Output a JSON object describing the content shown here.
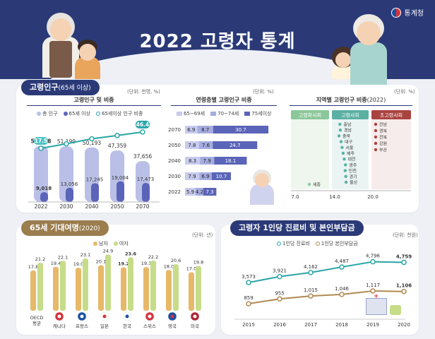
{
  "header": {
    "title": "2022 고령자 통계",
    "logo_text": "통계청"
  },
  "panel1": {
    "title": "고령인구",
    "title_small": "(65세 이상)",
    "unit": "(단위: 천명, %)",
    "unit2": "(단위: %)",
    "unit3": "(단위: %)",
    "sub1": "고령인구 및 비중",
    "sub2": "연령층별 고령인구 비중",
    "sub3_pre": "지역별 고령인구 비중",
    "sub3_year": "(2022)",
    "legend1": [
      "총 인구",
      "65세 이상",
      "65세이상 인구 비중"
    ],
    "legend2": [
      "65~69세",
      "70~74세",
      "75세이상"
    ]
  },
  "panel2": {
    "title": "65세 기대여명",
    "title_small": "(2020)",
    "unit": "(단위: 년)",
    "legend": [
      "남자",
      "여자"
    ]
  },
  "panel3": {
    "title": "고령자 1인당 진료비 및 본인부담금",
    "unit": "(단위: 천원)",
    "legend": [
      "1인당 진료비",
      "1인당 본인부담금"
    ]
  },
  "colors": {
    "navy": "#2b3a77",
    "lavender": "#b9bfe6",
    "blue": "#5a64b8",
    "teal": "#2aa5a8",
    "tan": "#e7b868",
    "green": "#c6dc88",
    "olive": "#b08a52"
  },
  "chart_data": [
    {
      "type": "bar",
      "title": "고령인구 및 비중",
      "categories": [
        "2022",
        "2030",
        "2040",
        "2050",
        "2070"
      ],
      "series": [
        {
          "name": "총 인구",
          "values": [
            51628,
            51199,
            50193,
            47359,
            37656
          ],
          "labels": [
            "51,628",
            "51,199",
            "50,193",
            "47,359",
            "37,656"
          ]
        },
        {
          "name": "65세 이상",
          "values": [
            9018,
            13056,
            17245,
            19004,
            17473
          ],
          "labels": [
            "9,018",
            "13,056",
            "17,245",
            "19,004",
            "17,473"
          ]
        },
        {
          "name": "65세이상 인구 비중",
          "type": "line",
          "values": [
            17.5,
            25.5,
            34.4,
            40.1,
            46.4
          ],
          "labels": [
            "17.5",
            "",
            "",
            "",
            "46.4"
          ]
        }
      ]
    },
    {
      "type": "bar",
      "title": "연령층별 고령인구 비중",
      "orientation": "horizontal-stacked",
      "categories": [
        "2070",
        "2050",
        "2040",
        "2030",
        "2022"
      ],
      "series": [
        {
          "name": "65~69세",
          "values": [
            6.9,
            7.8,
            8.3,
            7.9,
            5.9
          ]
        },
        {
          "name": "70~74세",
          "values": [
            8.7,
            7.6,
            7.9,
            6.9,
            4.2
          ]
        },
        {
          "name": "75세이상",
          "values": [
            30.7,
            24.7,
            18.1,
            10.7,
            7.3
          ]
        }
      ]
    },
    {
      "type": "scatter",
      "title": "지역별 고령인구 비중(2022)",
      "groups": [
        "고령화사회",
        "고령사회",
        "초고령사회"
      ],
      "xticks": [
        "7.0",
        "14.0",
        "20.0"
      ],
      "regions": [
        {
          "name": "충남",
          "group": 1,
          "value": 18.4
        },
        {
          "name": "경남",
          "group": 1,
          "value": 18.1
        },
        {
          "name": "충북",
          "group": 1,
          "value": 19.0
        },
        {
          "name": "대구",
          "group": 1,
          "value": 17.6
        },
        {
          "name": "서울",
          "group": 1,
          "value": 17.0
        },
        {
          "name": "제주",
          "group": 1,
          "value": 16.3
        },
        {
          "name": "대전",
          "group": 1,
          "value": 15.6
        },
        {
          "name": "광주",
          "group": 1,
          "value": 14.8
        },
        {
          "name": "인천",
          "group": 1,
          "value": 15.0
        },
        {
          "name": "경기",
          "group": 1,
          "value": 14.6
        },
        {
          "name": "울산",
          "group": 1,
          "value": 14.4
        },
        {
          "name": "세종",
          "group": 0,
          "value": 10.2
        },
        {
          "name": "전남",
          "group": 2,
          "value": 24.5
        },
        {
          "name": "경북",
          "group": 2,
          "value": 23.0
        },
        {
          "name": "전북",
          "group": 2,
          "value": 22.3
        },
        {
          "name": "강원",
          "group": 2,
          "value": 22.1
        },
        {
          "name": "부산",
          "group": 2,
          "value": 21.2
        }
      ]
    },
    {
      "type": "bar",
      "title": "65세 기대여명",
      "categories": [
        "OECD 평균",
        "캐나다",
        "프랑스",
        "일본",
        "한국",
        "스위스",
        "영국",
        "미국"
      ],
      "series": [
        {
          "name": "남자",
          "values": [
            17.8,
            19.4,
            19.0,
            20.1,
            19.2,
            19.3,
            18.0,
            17.0
          ]
        },
        {
          "name": "여자",
          "values": [
            21.2,
            22.1,
            23.1,
            24.9,
            23.6,
            22.2,
            20.6,
            19.8
          ]
        }
      ]
    },
    {
      "type": "line",
      "title": "고령자 1인당 진료비 및 본인부담금",
      "x": [
        "2015",
        "2016",
        "2017",
        "2018",
        "2019",
        "2020"
      ],
      "series": [
        {
          "name": "1인당 진료비",
          "values": [
            3573,
            3921,
            4162,
            4487,
            4796,
            4759
          ],
          "labels": [
            "3,573",
            "3,921",
            "4,162",
            "4,487",
            "4,796",
            "4,759"
          ]
        },
        {
          "name": "1인당 본인부담금",
          "values": [
            859,
            955,
            1015,
            1046,
            1117,
            1106
          ],
          "labels": [
            "859",
            "955",
            "1,015",
            "1,046",
            "1,117",
            "1,106"
          ]
        }
      ]
    }
  ]
}
